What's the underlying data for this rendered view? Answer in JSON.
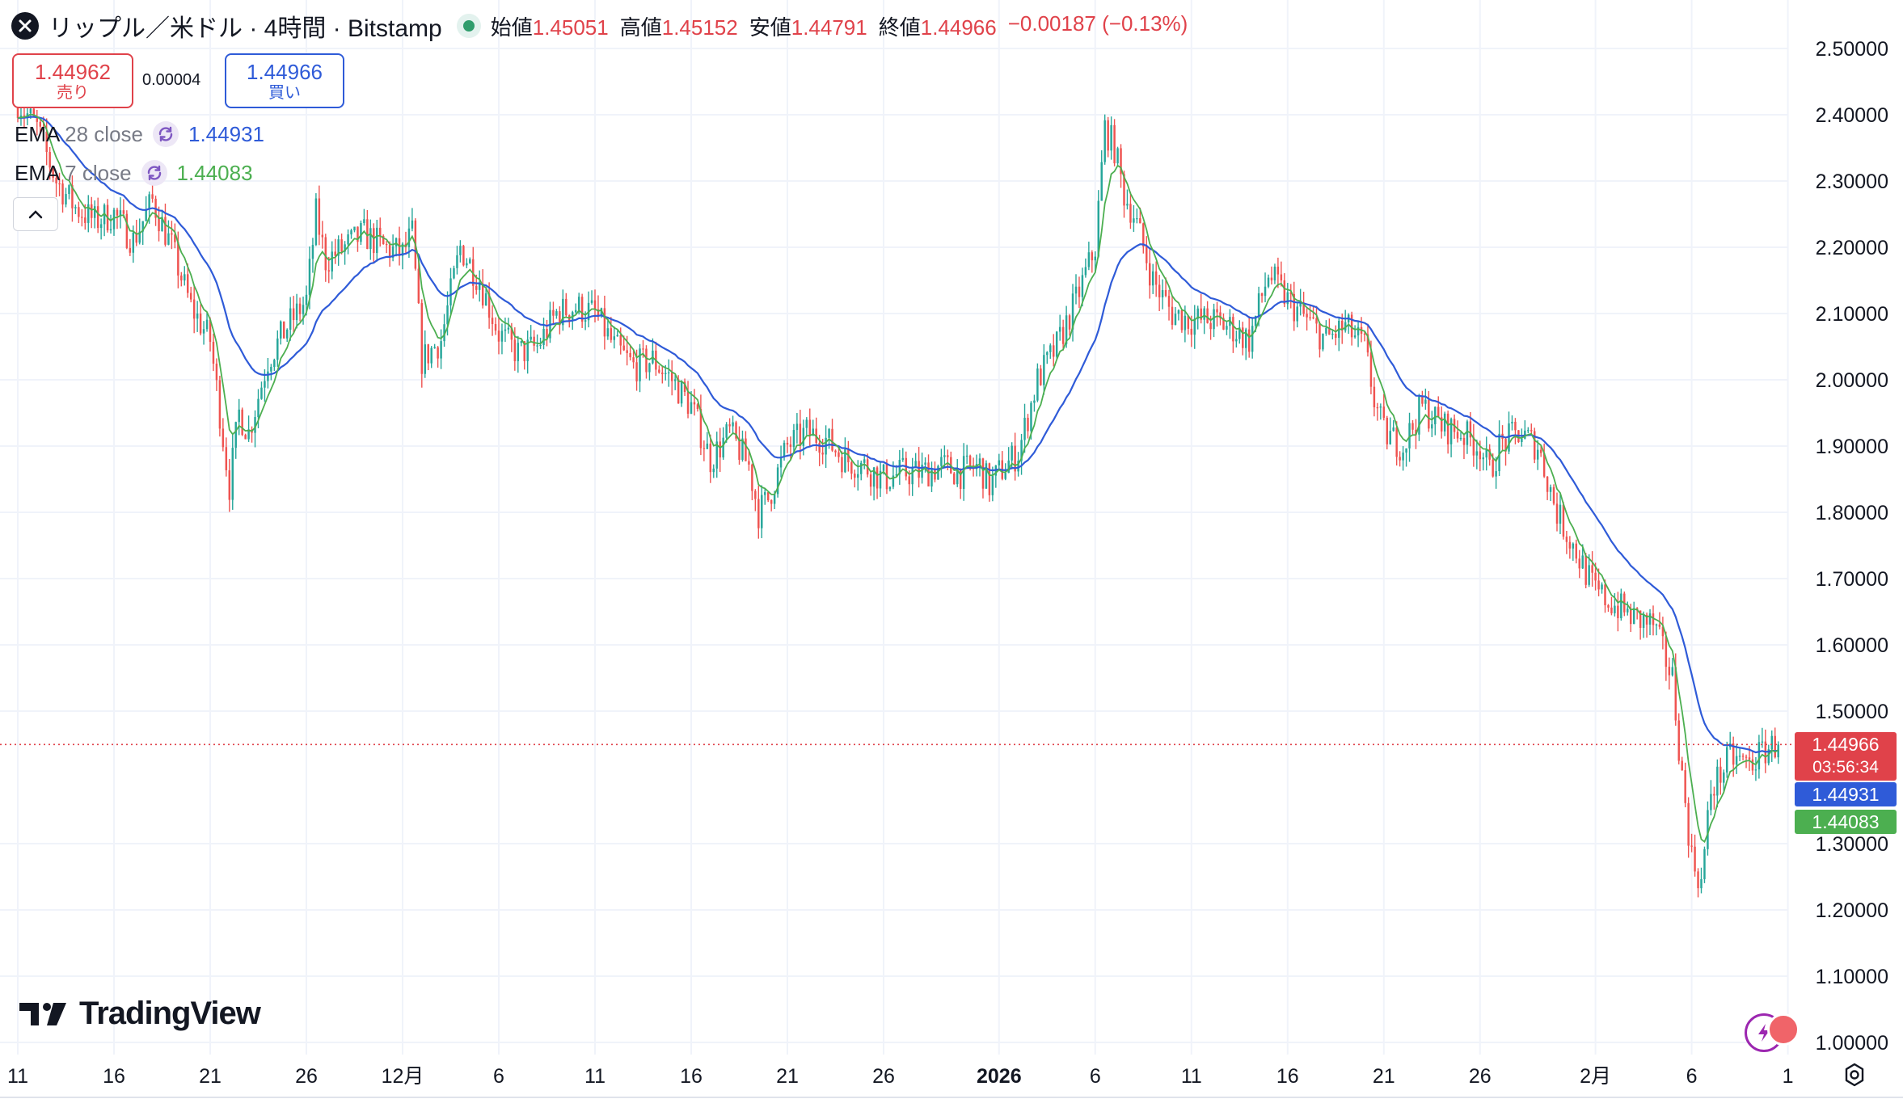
{
  "header": {
    "symbol_title": "リップル／米ドル · 4時間 · Bitstamp",
    "ohlc": [
      {
        "label": "始値",
        "value": "1.45051"
      },
      {
        "label": "高値",
        "value": "1.45152"
      },
      {
        "label": "安値",
        "value": "1.44791"
      },
      {
        "label": "終値",
        "value": "1.44966"
      }
    ],
    "change": "−0.00187 (−0.13%)"
  },
  "trade": {
    "sell_price": "1.44962",
    "sell_label": "売り",
    "spread": "0.00004",
    "buy_price": "1.44966",
    "buy_label": "買い"
  },
  "indicators": [
    {
      "name": "EMA",
      "params": "28 close",
      "value": "1.44931",
      "color": "#2f5bd8"
    },
    {
      "name": "EMA",
      "params": "7 close",
      "value": "1.44083",
      "color": "#4caf50"
    }
  ],
  "price_tags": {
    "last_price": "1.44966",
    "countdown": "03:56:34",
    "ema28": "1.44931",
    "ema7": "1.44083"
  },
  "colors": {
    "up": "#26a69a",
    "down": "#ef5350",
    "ema28": "#2f5bd8",
    "ema7": "#4caf50",
    "grid": "#f0f3fa",
    "last_price": "#e0424a"
  },
  "logo_text": "TradingView",
  "icons": [
    "ripple-x-icon",
    "market-status-icon",
    "sync-icon",
    "chevron-up-icon",
    "tradingview-logo-icon",
    "settings-gear-icon",
    "flash-badge-icon"
  ],
  "chart_data": {
    "type": "candlestick",
    "title": "リップル／米ドル · 4時間 · Bitstamp",
    "y_ticks": [
      "2.50000",
      "2.40000",
      "2.30000",
      "2.20000",
      "2.10000",
      "2.00000",
      "1.90000",
      "1.80000",
      "1.70000",
      "1.60000",
      "1.50000",
      "1.30000",
      "1.20000",
      "1.10000",
      "1.00000"
    ],
    "x_ticks": [
      {
        "label": "11",
        "day": 0
      },
      {
        "label": "16",
        "day": 5
      },
      {
        "label": "21",
        "day": 10
      },
      {
        "label": "26",
        "day": 15
      },
      {
        "label": "12月",
        "day": 20
      },
      {
        "label": "6",
        "day": 25
      },
      {
        "label": "11",
        "day": 30
      },
      {
        "label": "16",
        "day": 35
      },
      {
        "label": "21",
        "day": 40
      },
      {
        "label": "26",
        "day": 45
      },
      {
        "label": "2026",
        "day": 51,
        "bold": true
      },
      {
        "label": "6",
        "day": 56
      },
      {
        "label": "11",
        "day": 61
      },
      {
        "label": "16",
        "day": 66
      },
      {
        "label": "21",
        "day": 71
      },
      {
        "label": "26",
        "day": 76
      },
      {
        "label": "2月",
        "day": 82
      },
      {
        "label": "6",
        "day": 87
      },
      {
        "label": "1",
        "day": 92
      }
    ],
    "ylim": [
      1.0,
      2.55
    ],
    "last_price": 1.44966,
    "close_path": [
      [
        0.0,
        2.42
      ],
      [
        1.0,
        2.38
      ],
      [
        2.0,
        2.3
      ],
      [
        3.0,
        2.26
      ],
      [
        4.0,
        2.24
      ],
      [
        5.0,
        2.25
      ],
      [
        6.0,
        2.21
      ],
      [
        7.0,
        2.27
      ],
      [
        8.0,
        2.2
      ],
      [
        9.0,
        2.11
      ],
      [
        10.0,
        2.06
      ],
      [
        10.5,
        1.95
      ],
      [
        11.0,
        1.84
      ],
      [
        11.5,
        1.95
      ],
      [
        12.0,
        1.92
      ],
      [
        13.0,
        2.03
      ],
      [
        14.0,
        2.08
      ],
      [
        15.0,
        2.12
      ],
      [
        15.5,
        2.25
      ],
      [
        16.0,
        2.18
      ],
      [
        17.0,
        2.2
      ],
      [
        18.0,
        2.22
      ],
      [
        19.0,
        2.2
      ],
      [
        20.0,
        2.19
      ],
      [
        20.5,
        2.22
      ],
      [
        21.0,
        2.03
      ],
      [
        22.0,
        2.06
      ],
      [
        23.0,
        2.2
      ],
      [
        24.0,
        2.15
      ],
      [
        25.0,
        2.07
      ],
      [
        26.0,
        2.04
      ],
      [
        27.0,
        2.05
      ],
      [
        28.0,
        2.1
      ],
      [
        29.0,
        2.11
      ],
      [
        30.0,
        2.1
      ],
      [
        31.0,
        2.05
      ],
      [
        32.0,
        2.02
      ],
      [
        33.0,
        2.03
      ],
      [
        34.0,
        2.0
      ],
      [
        35.0,
        1.96
      ],
      [
        36.0,
        1.88
      ],
      [
        37.0,
        1.92
      ],
      [
        38.0,
        1.87
      ],
      [
        38.5,
        1.8
      ],
      [
        39.0,
        1.82
      ],
      [
        40.0,
        1.9
      ],
      [
        41.0,
        1.92
      ],
      [
        42.0,
        1.91
      ],
      [
        43.0,
        1.88
      ],
      [
        44.0,
        1.87
      ],
      [
        45.0,
        1.85
      ],
      [
        46.0,
        1.86
      ],
      [
        47.0,
        1.86
      ],
      [
        48.0,
        1.87
      ],
      [
        49.0,
        1.86
      ],
      [
        50.0,
        1.87
      ],
      [
        50.5,
        1.84
      ],
      [
        51.0,
        1.86
      ],
      [
        52.0,
        1.89
      ],
      [
        53.0,
        2.0
      ],
      [
        54.0,
        2.05
      ],
      [
        55.0,
        2.12
      ],
      [
        56.0,
        2.2
      ],
      [
        56.5,
        2.38
      ],
      [
        57.0,
        2.35
      ],
      [
        57.5,
        2.28
      ],
      [
        58.0,
        2.25
      ],
      [
        59.0,
        2.15
      ],
      [
        60.0,
        2.1
      ],
      [
        61.0,
        2.09
      ],
      [
        62.0,
        2.09
      ],
      [
        63.0,
        2.08
      ],
      [
        64.0,
        2.06
      ],
      [
        65.0,
        2.16
      ],
      [
        66.0,
        2.12
      ],
      [
        67.0,
        2.09
      ],
      [
        68.0,
        2.06
      ],
      [
        69.0,
        2.08
      ],
      [
        70.0,
        2.05
      ],
      [
        70.5,
        1.97
      ],
      [
        71.0,
        1.92
      ],
      [
        72.0,
        1.9
      ],
      [
        73.0,
        1.96
      ],
      [
        74.0,
        1.93
      ],
      [
        75.0,
        1.92
      ],
      [
        76.0,
        1.9
      ],
      [
        76.5,
        1.86
      ],
      [
        77.0,
        1.9
      ],
      [
        78.0,
        1.92
      ],
      [
        79.0,
        1.9
      ],
      [
        80.0,
        1.8
      ],
      [
        81.0,
        1.74
      ],
      [
        82.0,
        1.68
      ],
      [
        83.0,
        1.66
      ],
      [
        84.0,
        1.64
      ],
      [
        85.0,
        1.63
      ],
      [
        86.0,
        1.55
      ],
      [
        86.5,
        1.4
      ],
      [
        87.0,
        1.28
      ],
      [
        87.5,
        1.24
      ],
      [
        88.0,
        1.38
      ],
      [
        89.0,
        1.43
      ],
      [
        90.0,
        1.42
      ],
      [
        91.0,
        1.445
      ],
      [
        91.5,
        1.44966
      ]
    ]
  }
}
